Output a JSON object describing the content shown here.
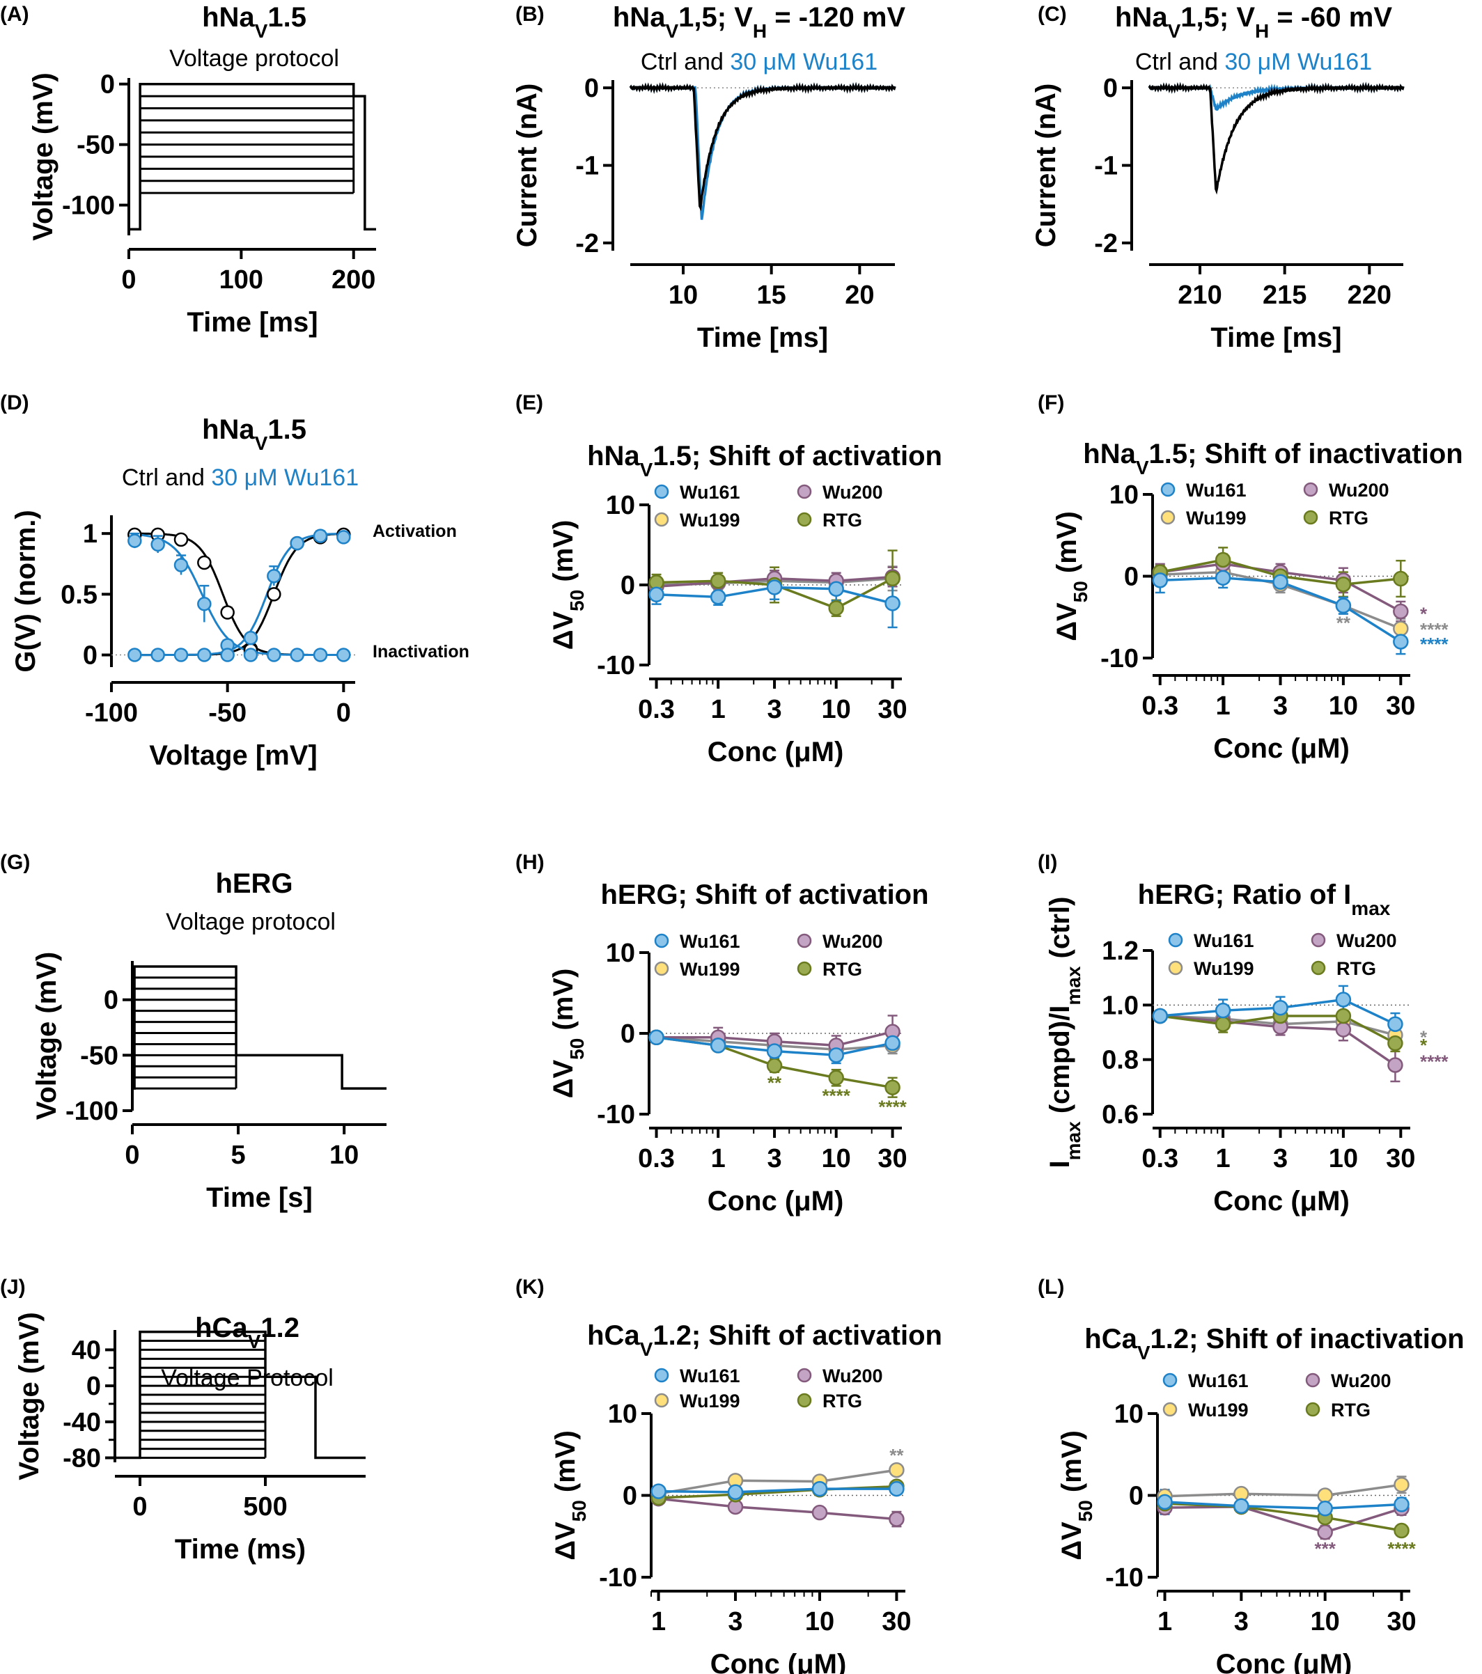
{
  "colors": {
    "ctrl": "#000000",
    "drug": "#1e82c8",
    "Wu161": "#1e82c8",
    "Wu199": "#8c8c8c",
    "Wu200": "#835a7c",
    "RTG": "#6a7a1e",
    "markers": {
      "Wu161": "#8cc4ea",
      "Wu199": "#ffe07a",
      "Wu200": "#c4a4c4",
      "RTG": "#9aaa50"
    }
  },
  "chart_data": [
    {
      "id": "A",
      "type": "line",
      "panel_label": "(A)",
      "title": "hNaV1.5",
      "subtitle": "Voltage protocol",
      "xlabel": "Time  [ms]",
      "ylabel": "Voltage (mV)",
      "xlim": [
        0,
        220
      ],
      "ylim": [
        -125,
        5
      ],
      "xticks": [
        0,
        100,
        200
      ],
      "yticks": [
        0,
        -50,
        -100
      ],
      "protocol": {
        "hold": -120,
        "step_start": 10,
        "step_end": 200,
        "levels": [
          0,
          -10,
          -20,
          -30,
          -40,
          -50,
          -60,
          -70,
          -80,
          -90
        ],
        "post_start": 200,
        "post_end": 210,
        "post_level": -10
      }
    },
    {
      "id": "B",
      "type": "line",
      "panel_label": "(B)",
      "title": "hNaV1,5; VH = -120 mV",
      "subtitle_plain": "Ctrl and ",
      "subtitle_colored": "30 μM Wu161",
      "xlabel": "Time  [ms]",
      "ylabel": "Current (nA)",
      "xlim": [
        7,
        22
      ],
      "ylim": [
        -2.1,
        0.1
      ],
      "xticks": [
        10,
        15,
        20
      ],
      "yticks": [
        0,
        -1,
        -2
      ],
      "series": [
        {
          "name": "Ctrl",
          "onset": 10.6,
          "peak_t": 10.95,
          "peak": -1.58,
          "decay": 0.9
        },
        {
          "name": "30 μM Wu161",
          "onset": 10.7,
          "peak_t": 11.05,
          "peak": -1.72,
          "decay": 0.8
        }
      ]
    },
    {
      "id": "C",
      "type": "line",
      "panel_label": "(C)",
      "title": "hNaV1,5; VH = -60 mV",
      "subtitle_plain": "Ctrl and ",
      "subtitle_colored": "30 μM Wu161",
      "xlabel": "Time  [ms]",
      "ylabel": "Current (nA)",
      "xlim": [
        207,
        222
      ],
      "ylim": [
        -2.1,
        0.1
      ],
      "xticks": [
        210,
        215,
        220
      ],
      "yticks": [
        0,
        -1,
        -2
      ],
      "series": [
        {
          "name": "Ctrl",
          "onset": 210.6,
          "peak_t": 210.95,
          "peak": -1.35,
          "decay": 1.1
        },
        {
          "name": "30 μM Wu161",
          "onset": 210.6,
          "peak_t": 210.95,
          "peak": -0.28,
          "decay": 1.3
        }
      ]
    },
    {
      "id": "D",
      "type": "scatter",
      "panel_label": "(D)",
      "title": "hNaV1.5",
      "subtitle_plain": "Ctrl and ",
      "subtitle_colored": "30 μM Wu161",
      "xlabel": "Voltage  [mV]",
      "ylabel": "G(V) (norm.)",
      "xlim": [
        -100,
        5
      ],
      "ylim": [
        -0.1,
        1.15
      ],
      "xticks": [
        -100,
        -50,
        0
      ],
      "yticks": [
        0.0,
        0.5,
        1.0
      ],
      "annotations": [
        "Activation",
        "Inactivation"
      ],
      "series": [
        {
          "name": "Ctrl inactivation",
          "x": [
            -90,
            -80,
            -70,
            -60,
            -50,
            -40
          ],
          "y": [
            0.99,
            0.99,
            0.95,
            0.76,
            0.35,
            0.05
          ],
          "err": [
            0.02,
            0.02,
            0.02,
            0.03,
            0.04,
            0.01
          ]
        },
        {
          "name": "Wu161 inactivation",
          "x": [
            -90,
            -80,
            -70,
            -60,
            -50,
            -40
          ],
          "y": [
            0.94,
            0.91,
            0.74,
            0.42,
            0.08,
            0.02
          ],
          "err": [
            0.06,
            0.07,
            0.08,
            0.15,
            0.04,
            0.01
          ]
        },
        {
          "name": "Ctrl activation",
          "x": [
            -40,
            -30,
            -20,
            -10,
            0
          ],
          "y": [
            0.04,
            0.5,
            0.92,
            0.97,
            0.99
          ],
          "err": [
            0.01,
            0.04,
            0.02,
            0.03,
            0.03
          ]
        },
        {
          "name": "Wu161 activation",
          "x": [
            -40,
            -30,
            -20,
            -10,
            0
          ],
          "y": [
            0.14,
            0.65,
            0.92,
            0.98,
            0.97
          ],
          "err": [
            0.03,
            0.08,
            0.02,
            0.04,
            0.04
          ]
        },
        {
          "name": "Wu161 zero",
          "x": [
            -90,
            -80,
            -70,
            -60,
            -50,
            -40,
            -30,
            -20,
            -10,
            0
          ],
          "y": [
            0,
            0,
            0,
            0,
            0,
            0,
            0,
            0,
            0,
            0
          ],
          "err": [
            0,
            0,
            0,
            0,
            0,
            0,
            0,
            0,
            0,
            0
          ]
        }
      ]
    },
    {
      "id": "E",
      "type": "line",
      "panel_label": "(E)",
      "title": "hNaV1.5; Shift of activation",
      "xlabel": "Conc (μM)",
      "ylabel": "ΔV50 (mV)",
      "xscale": "log",
      "xlim": [
        0.26,
        36
      ],
      "ylim": [
        -10,
        10
      ],
      "xticks": [
        "0.3",
        "1",
        "3",
        "10",
        "30"
      ],
      "yticks": [
        10,
        0,
        -10
      ],
      "x": [
        0.3,
        1,
        3,
        10,
        30
      ],
      "series": [
        {
          "name": "Wu199",
          "y": [
            0.0,
            0.2,
            0.5,
            0.3,
            0.8
          ],
          "err": [
            0.8,
            0.8,
            1.0,
            0.8,
            1.5
          ]
        },
        {
          "name": "Wu200",
          "y": [
            -0.2,
            0.3,
            0.8,
            0.5,
            1.0
          ],
          "err": [
            0.8,
            0.8,
            1.0,
            1.0,
            1.2
          ]
        },
        {
          "name": "RTG",
          "y": [
            0.3,
            0.5,
            0.0,
            -2.9,
            0.8
          ],
          "err": [
            1.0,
            1.0,
            2.2,
            1.0,
            3.5
          ]
        },
        {
          "name": "Wu161",
          "y": [
            -1.2,
            -1.5,
            -0.3,
            -0.5,
            -2.3
          ],
          "err": [
            1.2,
            1.0,
            1.5,
            1.5,
            3.0
          ]
        }
      ]
    },
    {
      "id": "F",
      "type": "line",
      "panel_label": "(F)",
      "title": "hNaV1.5; Shift of inactivation",
      "xlabel": "Conc (μM)",
      "ylabel": "ΔV50 (mV)",
      "xscale": "log",
      "xlim": [
        0.26,
        36
      ],
      "ylim": [
        -10,
        10
      ],
      "xticks": [
        "0.3",
        "1",
        "3",
        "10",
        "30"
      ],
      "yticks": [
        10,
        0,
        -10
      ],
      "x": [
        0.3,
        1,
        3,
        10,
        30
      ],
      "series": [
        {
          "name": "Wu199",
          "y": [
            0.2,
            0.5,
            -1.0,
            -3.6,
            -6.4
          ],
          "err": [
            0.8,
            1.2,
            1.0,
            1.0,
            1.2
          ]
        },
        {
          "name": "Wu200",
          "y": [
            0.5,
            1.5,
            0.5,
            -0.5,
            -4.3
          ],
          "err": [
            1.0,
            1.2,
            1.0,
            1.5,
            1.2
          ]
        },
        {
          "name": "RTG",
          "y": [
            0.5,
            2.0,
            0.0,
            -1.0,
            -0.3
          ],
          "err": [
            0.8,
            1.5,
            1.0,
            1.5,
            2.2
          ]
        },
        {
          "name": "Wu161",
          "y": [
            -0.5,
            -0.2,
            -0.7,
            -3.6,
            -8.0
          ],
          "err": [
            1.5,
            1.2,
            1.0,
            1.0,
            1.5
          ]
        }
      ],
      "stars": [
        {
          "x": 10,
          "y": -5.8,
          "text": "**",
          "series": "Wu199"
        },
        {
          "x": 30,
          "y": -4.7,
          "text": "*",
          "series": "Wu200"
        },
        {
          "x": 30,
          "y": -6.6,
          "text": "****",
          "series": "Wu199"
        },
        {
          "x": 30,
          "y": -8.4,
          "text": "****",
          "series": "Wu161"
        }
      ]
    },
    {
      "id": "G",
      "type": "line",
      "panel_label": "(G)",
      "title": "hERG",
      "subtitle": "Voltage protocol",
      "xlabel": "Time  [s]",
      "ylabel": "Voltage (mV)",
      "xlim": [
        0,
        12
      ],
      "ylim": [
        -100,
        35
      ],
      "xticks": [
        0,
        5,
        10
      ],
      "yticks": [
        0,
        -50,
        -100
      ],
      "protocol": {
        "hold": -80,
        "step_start": 0.1,
        "step_end": 4.9,
        "levels": [
          30,
          20,
          10,
          0,
          -10,
          -20,
          -30,
          -40,
          -50,
          -60,
          -70,
          -80
        ],
        "post_start": 4.9,
        "post_end": 9.9,
        "post_level": -50
      }
    },
    {
      "id": "H",
      "type": "line",
      "panel_label": "(H)",
      "title": "hERG; Shift of activation",
      "xlabel": "Conc (μM)",
      "ylabel": "ΔV50 (mV)",
      "xscale": "log",
      "xlim": [
        0.26,
        36
      ],
      "ylim": [
        -10,
        10
      ],
      "xticks": [
        "0.3",
        "1",
        "3",
        "10",
        "30"
      ],
      "yticks": [
        10,
        0,
        -10
      ],
      "x": [
        0.3,
        1,
        3,
        10,
        30
      ],
      "series": [
        {
          "name": "Wu199",
          "y": [
            -0.5,
            -1.0,
            -1.5,
            -2.0,
            -1.5
          ],
          "err": [
            0.5,
            1.0,
            1.0,
            1.0,
            1.0
          ]
        },
        {
          "name": "Wu200",
          "y": [
            -0.5,
            -0.5,
            -1.0,
            -1.5,
            0.2
          ],
          "err": [
            0.5,
            1.2,
            1.0,
            1.2,
            2.0
          ]
        },
        {
          "name": "RTG",
          "y": [
            -0.5,
            -1.5,
            -4.0,
            -5.5,
            -6.7
          ],
          "err": [
            0.5,
            0.5,
            0.8,
            1.0,
            1.2
          ]
        },
        {
          "name": "Wu161",
          "y": [
            -0.5,
            -1.5,
            -2.2,
            -2.7,
            -1.2
          ],
          "err": [
            0.5,
            0.5,
            0.8,
            1.0,
            1.0
          ]
        }
      ],
      "stars": [
        {
          "x": 3,
          "y": -6.2,
          "text": "**",
          "series": "RTG"
        },
        {
          "x": 10,
          "y": -7.8,
          "text": "****",
          "series": "RTG"
        },
        {
          "x": 30,
          "y": -9.2,
          "text": "****",
          "series": "RTG"
        }
      ]
    },
    {
      "id": "I",
      "type": "line",
      "panel_label": "(I)",
      "title": "hERG; Ratio of Imax",
      "xlabel": "Conc (μM)",
      "ylabel": "Imax (cmpd)/Imax (ctrl)",
      "xscale": "log",
      "xlim": [
        0.26,
        36
      ],
      "ylim": [
        0.6,
        1.2
      ],
      "xticks": [
        "0.3",
        "1",
        "3",
        "10",
        "30"
      ],
      "yticks": [
        "1.2",
        "1.0",
        "0.8",
        "0.6"
      ],
      "reference_line": 1.0,
      "x": [
        0.3,
        1,
        3,
        10,
        27
      ],
      "series": [
        {
          "name": "Wu199",
          "y": [
            0.96,
            0.95,
            0.93,
            0.94,
            0.89
          ],
          "err": [
            0.02,
            0.03,
            0.03,
            0.03,
            0.03
          ]
        },
        {
          "name": "Wu200",
          "y": [
            0.96,
            0.94,
            0.92,
            0.91,
            0.78
          ],
          "err": [
            0.02,
            0.03,
            0.03,
            0.04,
            0.06
          ]
        },
        {
          "name": "RTG",
          "y": [
            0.96,
            0.93,
            0.96,
            0.96,
            0.86
          ],
          "err": [
            0.02,
            0.03,
            0.03,
            0.04,
            0.03
          ]
        },
        {
          "name": "Wu161",
          "y": [
            0.96,
            0.98,
            0.99,
            1.02,
            0.93
          ],
          "err": [
            0.02,
            0.04,
            0.04,
            0.05,
            0.04
          ]
        }
      ],
      "stars": [
        {
          "x": 30,
          "y": 0.88,
          "text": "*",
          "series": "Wu199"
        },
        {
          "x": 30,
          "y": 0.85,
          "text": "*",
          "series": "RTG"
        },
        {
          "x": 30,
          "y": 0.79,
          "text": "****",
          "series": "Wu200"
        }
      ]
    },
    {
      "id": "J",
      "type": "line",
      "panel_label": "(J)",
      "title": "hCaV1.2",
      "subtitle": "Voltage Protocol",
      "xlabel": "Time (ms)",
      "ylabel": "Voltage (mV)",
      "xlim": [
        -100,
        900
      ],
      "ylim": [
        -85,
        62
      ],
      "xticks": [
        0,
        500
      ],
      "yticks": [
        40,
        0,
        -40,
        -80
      ],
      "yticks_minor": [
        20,
        -20,
        -60
      ],
      "protocol": {
        "hold": -80,
        "hold_start": -100,
        "step_start": 0,
        "step_end": 500,
        "levels": [
          60,
          50,
          40,
          30,
          20,
          10,
          0,
          -10,
          -20,
          -30,
          -40,
          -50,
          -60,
          -70,
          -80
        ],
        "post_start": 500,
        "post_end": 700,
        "post_level": 10,
        "end": 900
      }
    },
    {
      "id": "K",
      "type": "line",
      "panel_label": "(K)",
      "title": "hCaV1.2; Shift of activation",
      "xlabel": "Conc (μM)",
      "ylabel": "ΔV50 (mV)",
      "xscale": "log",
      "xlim": [
        0.9,
        34
      ],
      "ylim": [
        -10,
        10
      ],
      "xticks": [
        "1",
        "3",
        "10",
        "30"
      ],
      "yticks": [
        10,
        0,
        -10
      ],
      "x": [
        1,
        3,
        10,
        30
      ],
      "series": [
        {
          "name": "Wu199",
          "y": [
            0.2,
            1.8,
            1.7,
            3.1
          ],
          "err": [
            0.4,
            0.4,
            0.4,
            0.6
          ]
        },
        {
          "name": "Wu200",
          "y": [
            -0.4,
            -1.4,
            -2.1,
            -2.9
          ],
          "err": [
            0.4,
            0.5,
            0.5,
            0.9
          ]
        },
        {
          "name": "RTG",
          "y": [
            -0.3,
            0.1,
            0.7,
            1.1
          ],
          "err": [
            0.3,
            0.4,
            0.4,
            0.4
          ]
        },
        {
          "name": "Wu161",
          "y": [
            0.5,
            0.4,
            0.8,
            0.8
          ],
          "err": [
            0.3,
            0.3,
            0.3,
            0.4
          ]
        }
      ],
      "stars": [
        {
          "x": 30,
          "y": 4.8,
          "text": "**",
          "series": "Wu199"
        }
      ]
    },
    {
      "id": "L",
      "type": "line",
      "panel_label": "(L)",
      "title": "hCaV1.2; Shift of inactivation",
      "xlabel": "Conc (μM)",
      "ylabel": "ΔV50 (mV)",
      "xscale": "log",
      "xlim": [
        0.9,
        34
      ],
      "ylim": [
        -10,
        10
      ],
      "xticks": [
        "1",
        "3",
        "10",
        "30"
      ],
      "yticks": [
        10,
        0,
        -10
      ],
      "x": [
        1,
        3,
        10,
        30
      ],
      "series": [
        {
          "name": "Wu199",
          "y": [
            -0.1,
            0.2,
            0.0,
            1.3
          ],
          "err": [
            0.8,
            0.4,
            0.6,
            1.0
          ]
        },
        {
          "name": "Wu200",
          "y": [
            -1.5,
            -1.4,
            -4.5,
            -1.6
          ],
          "err": [
            0.8,
            0.6,
            0.8,
            0.8
          ]
        },
        {
          "name": "RTG",
          "y": [
            -1.0,
            -1.4,
            -2.7,
            -4.3
          ],
          "err": [
            1.0,
            0.6,
            0.6,
            0.4
          ]
        },
        {
          "name": "Wu161",
          "y": [
            -0.8,
            -1.3,
            -1.6,
            -1.1
          ],
          "err": [
            1.5,
            0.6,
            1.2,
            0.8
          ]
        }
      ],
      "stars": [
        {
          "x": 10,
          "y": -6.6,
          "text": "***",
          "series": "Wu200"
        },
        {
          "x": 30,
          "y": -6.6,
          "text": "****",
          "series": "RTG"
        }
      ]
    }
  ]
}
